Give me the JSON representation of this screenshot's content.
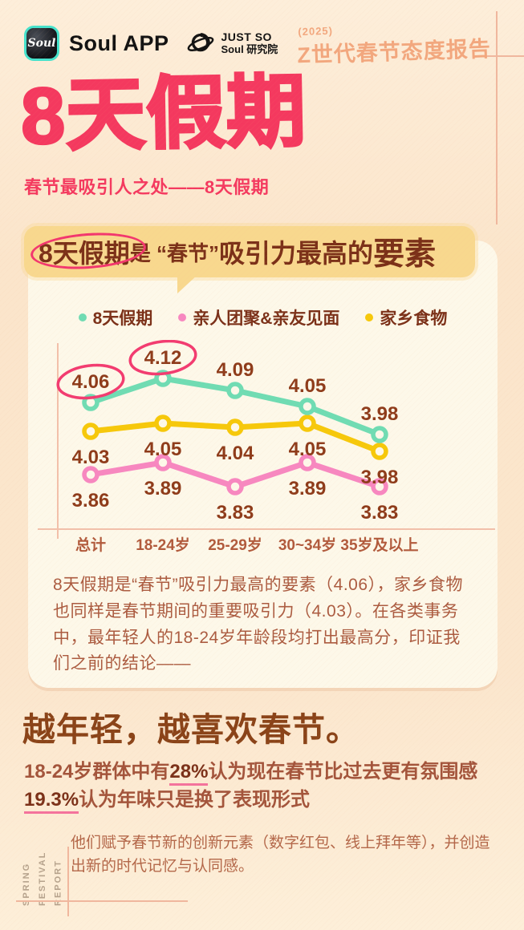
{
  "header": {
    "soul_logo_text": "Soul",
    "brand": "Soul APP",
    "lab_line1": "JUST SO",
    "lab_line2": "Soul 研究院",
    "report_year": "(2025)",
    "report_title": "Z世代春节态度报告"
  },
  "hero": {
    "title": "8天假期",
    "subtitle": "春节最吸引人之处——8天假期"
  },
  "card": {
    "banner": {
      "seg1": "8天假期",
      "seg2": "是 “春节” ",
      "seg3": "吸引力最高的",
      "seg4": "要素"
    },
    "paragraph": "8天假期是“春节”吸引力最高的要素（4.06），家乡食物也同样是春节期间的重要吸引力（4.03）。在各类事务中，最年轻人的18-24岁年龄段均打出最高分，印证我们之前的结论——"
  },
  "chart_data": {
    "type": "line",
    "title": "8天假期是“春节”吸引力最高的要素",
    "categories": [
      "总计",
      "18-24岁",
      "25-29岁",
      "30~34岁",
      "35岁及以上"
    ],
    "series": [
      {
        "name": "8天假期",
        "color": "#6fdcb3",
        "label_position": "above",
        "values": [
          4.06,
          4.12,
          4.09,
          4.05,
          3.98
        ]
      },
      {
        "name": "亲人团聚&亲友见面",
        "color": "#f787c0",
        "label_position": "below",
        "values": [
          3.86,
          3.89,
          3.83,
          3.89,
          3.83
        ]
      },
      {
        "name": "家乡食物",
        "color": "#f6c80a",
        "label_position": "below",
        "values": [
          4.03,
          4.05,
          4.04,
          4.05,
          3.98
        ]
      }
    ],
    "annotations": {
      "circled": [
        {
          "series": "8天假期",
          "category": "总计",
          "value": 4.06
        },
        {
          "series": "8天假期",
          "category": "18-24岁",
          "value": 4.12
        }
      ]
    },
    "ylim": [
      3.78,
      4.16
    ],
    "grid": false,
    "legend_position": "top"
  },
  "section": {
    "heading": "越年轻，越喜欢春节。",
    "line1_prefix": "18-24岁群体中有",
    "line1_strong": "28%",
    "line1_suffix": "认为现在春节比过去更有氛围感",
    "line2_strong": "19.3%",
    "line2_suffix": "认为年味只是换了表现形式",
    "note": "他们赋予春节新的创新元素（数字红包、线上拜年等），并创造出新的时代记忆与认同感。",
    "side_label_line1": "SPRING FESTIVAL",
    "side_label_line2": "REPORT"
  },
  "colors": {
    "accent_pink": "#f4395f",
    "brand_teal": "#45e2cc",
    "banner_bg": "#f8d88e",
    "card_bg": "#fdf8e9",
    "page_bg": "#fbe6cd",
    "text_brown_dark": "#7b3018",
    "text_brown": "#a3543b",
    "chart_value_label": "#8e3b1a",
    "axis_label": "#b15a3c",
    "axis_line": "#f2c0aa",
    "annotation_pink": "#f23b70"
  }
}
